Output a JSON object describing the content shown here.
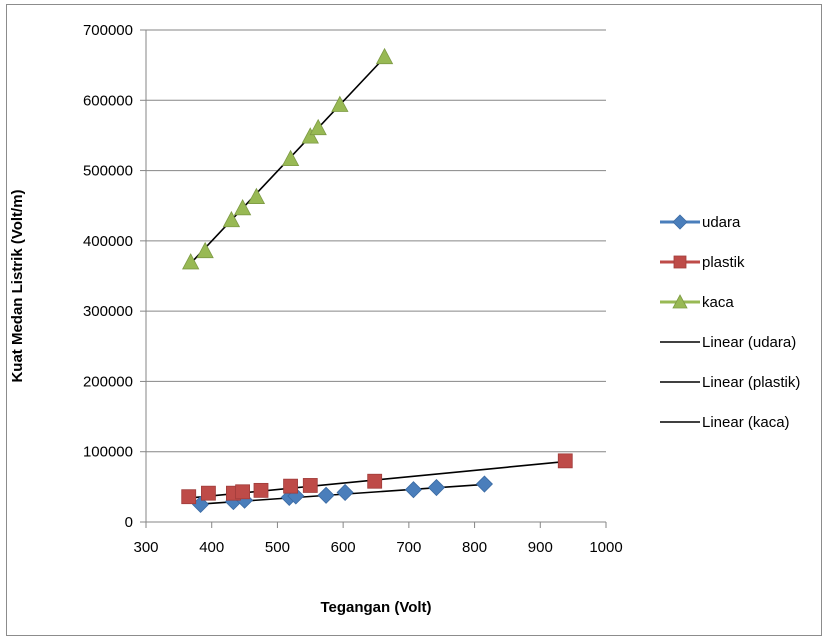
{
  "chart_data": {
    "type": "scatter",
    "xlabel": "Tegangan (Volt)",
    "ylabel": "Kuat Medan Listrik (Volt/m)",
    "xlim": [
      300,
      1000
    ],
    "ylim": [
      0,
      700000
    ],
    "x_ticks": [
      "300",
      "400",
      "500",
      "600",
      "700",
      "800",
      "900",
      "1000"
    ],
    "y_ticks": [
      "0",
      "100000",
      "200000",
      "300000",
      "400000",
      "500000",
      "600000",
      "700000"
    ],
    "grid": "horizontal",
    "legend_position": "right",
    "series": [
      {
        "name": "udara",
        "marker": "diamond",
        "color": "#4a7ebb",
        "points": [
          [
            383,
            25000
          ],
          [
            433,
            29000
          ],
          [
            450,
            31000
          ],
          [
            518,
            35000
          ],
          [
            528,
            37000
          ],
          [
            574,
            38000
          ],
          [
            603,
            42000
          ],
          [
            707,
            46000
          ],
          [
            742,
            49000
          ],
          [
            815,
            54000
          ]
        ]
      },
      {
        "name": "plastik",
        "marker": "square",
        "color": "#be4b48",
        "points": [
          [
            365,
            36000
          ],
          [
            395,
            41000
          ],
          [
            433,
            41000
          ],
          [
            447,
            43000
          ],
          [
            475,
            45000
          ],
          [
            520,
            51000
          ],
          [
            550,
            52000
          ],
          [
            648,
            58000
          ],
          [
            938,
            87000
          ]
        ]
      },
      {
        "name": "kaca",
        "marker": "triangle",
        "color": "#98b954",
        "points": [
          [
            368,
            370000
          ],
          [
            390,
            386000
          ],
          [
            430,
            430000
          ],
          [
            447,
            447000
          ],
          [
            468,
            463000
          ],
          [
            520,
            517000
          ],
          [
            550,
            549000
          ],
          [
            562,
            561000
          ],
          [
            595,
            594000
          ],
          [
            663,
            662000
          ]
        ]
      }
    ],
    "trendlines": [
      {
        "name": "Linear (udara)",
        "color": "#000000",
        "x": [
          383,
          815
        ],
        "y": [
          25500,
          53500
        ]
      },
      {
        "name": "Linear (plastik)",
        "color": "#000000",
        "x": [
          365,
          938
        ],
        "y": [
          34000,
          86000
        ]
      },
      {
        "name": "Linear (kaca)",
        "color": "#000000",
        "x": [
          368,
          663
        ],
        "y": [
          368000,
          661000
        ]
      }
    ]
  }
}
